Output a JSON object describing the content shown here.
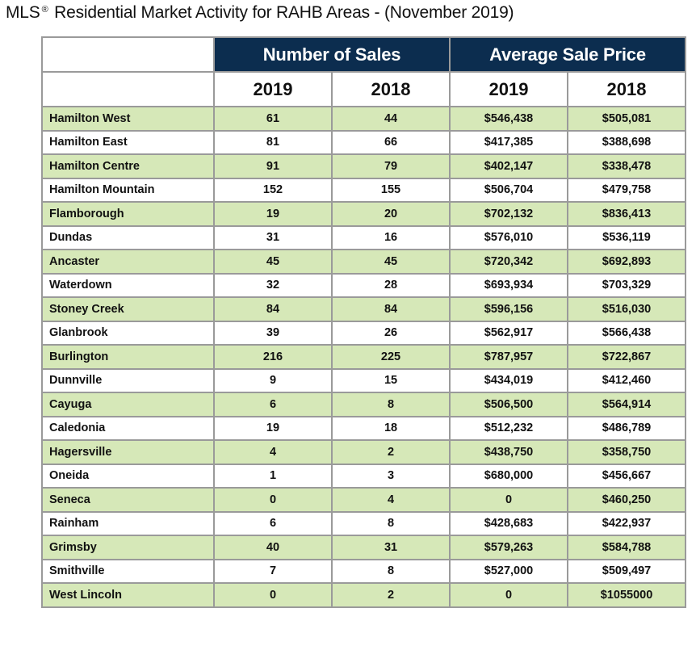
{
  "title": {
    "prefix": "MLS",
    "mark": "®",
    "text": "Residential Market Activity for RAHB Areas - (November 2019)"
  },
  "table": {
    "groups": [
      "Number of Sales",
      "Average Sale Price"
    ],
    "years": [
      "2019",
      "2018",
      "2019",
      "2018"
    ],
    "row_colors": {
      "alt": "#d6e8b8",
      "plain": "#ffffff",
      "header": "#0c2d4f"
    },
    "rows": [
      {
        "area": "Hamilton West",
        "sales_2019": "61",
        "sales_2018": "44",
        "price_2019": "$546,438",
        "price_2018": "$505,081"
      },
      {
        "area": "Hamilton East",
        "sales_2019": "81",
        "sales_2018": "66",
        "price_2019": "$417,385",
        "price_2018": "$388,698"
      },
      {
        "area": "Hamilton Centre",
        "sales_2019": "91",
        "sales_2018": "79",
        "price_2019": "$402,147",
        "price_2018": "$338,478"
      },
      {
        "area": "Hamilton Mountain",
        "sales_2019": "152",
        "sales_2018": "155",
        "price_2019": "$506,704",
        "price_2018": "$479,758"
      },
      {
        "area": "Flamborough",
        "sales_2019": "19",
        "sales_2018": "20",
        "price_2019": "$702,132",
        "price_2018": "$836,413"
      },
      {
        "area": "Dundas",
        "sales_2019": "31",
        "sales_2018": "16",
        "price_2019": "$576,010",
        "price_2018": "$536,119"
      },
      {
        "area": "Ancaster",
        "sales_2019": "45",
        "sales_2018": "45",
        "price_2019": "$720,342",
        "price_2018": "$692,893"
      },
      {
        "area": "Waterdown",
        "sales_2019": "32",
        "sales_2018": "28",
        "price_2019": "$693,934",
        "price_2018": "$703,329"
      },
      {
        "area": "Stoney Creek",
        "sales_2019": "84",
        "sales_2018": "84",
        "price_2019": "$596,156",
        "price_2018": "$516,030"
      },
      {
        "area": "Glanbrook",
        "sales_2019": "39",
        "sales_2018": "26",
        "price_2019": "$562,917",
        "price_2018": "$566,438"
      },
      {
        "area": "Burlington",
        "sales_2019": "216",
        "sales_2018": "225",
        "price_2019": "$787,957",
        "price_2018": "$722,867"
      },
      {
        "area": "Dunnville",
        "sales_2019": "9",
        "sales_2018": "15",
        "price_2019": "$434,019",
        "price_2018": "$412,460"
      },
      {
        "area": "Cayuga",
        "sales_2019": "6",
        "sales_2018": "8",
        "price_2019": "$506,500",
        "price_2018": "$564,914"
      },
      {
        "area": "Caledonia",
        "sales_2019": "19",
        "sales_2018": "18",
        "price_2019": "$512,232",
        "price_2018": "$486,789"
      },
      {
        "area": "Hagersville",
        "sales_2019": "4",
        "sales_2018": "2",
        "price_2019": "$438,750",
        "price_2018": "$358,750"
      },
      {
        "area": "Oneida",
        "sales_2019": "1",
        "sales_2018": "3",
        "price_2019": "$680,000",
        "price_2018": "$456,667"
      },
      {
        "area": "Seneca",
        "sales_2019": "0",
        "sales_2018": "4",
        "price_2019": "0",
        "price_2018": "$460,250"
      },
      {
        "area": "Rainham",
        "sales_2019": "6",
        "sales_2018": "8",
        "price_2019": "$428,683",
        "price_2018": "$422,937"
      },
      {
        "area": "Grimsby",
        "sales_2019": "40",
        "sales_2018": "31",
        "price_2019": "$579,263",
        "price_2018": "$584,788"
      },
      {
        "area": "Smithville",
        "sales_2019": "7",
        "sales_2018": "8",
        "price_2019": "$527,000",
        "price_2018": "$509,497"
      },
      {
        "area": "West Lincoln",
        "sales_2019": "0",
        "sales_2018": "2",
        "price_2019": "0",
        "price_2018": "$1055000"
      }
    ]
  }
}
